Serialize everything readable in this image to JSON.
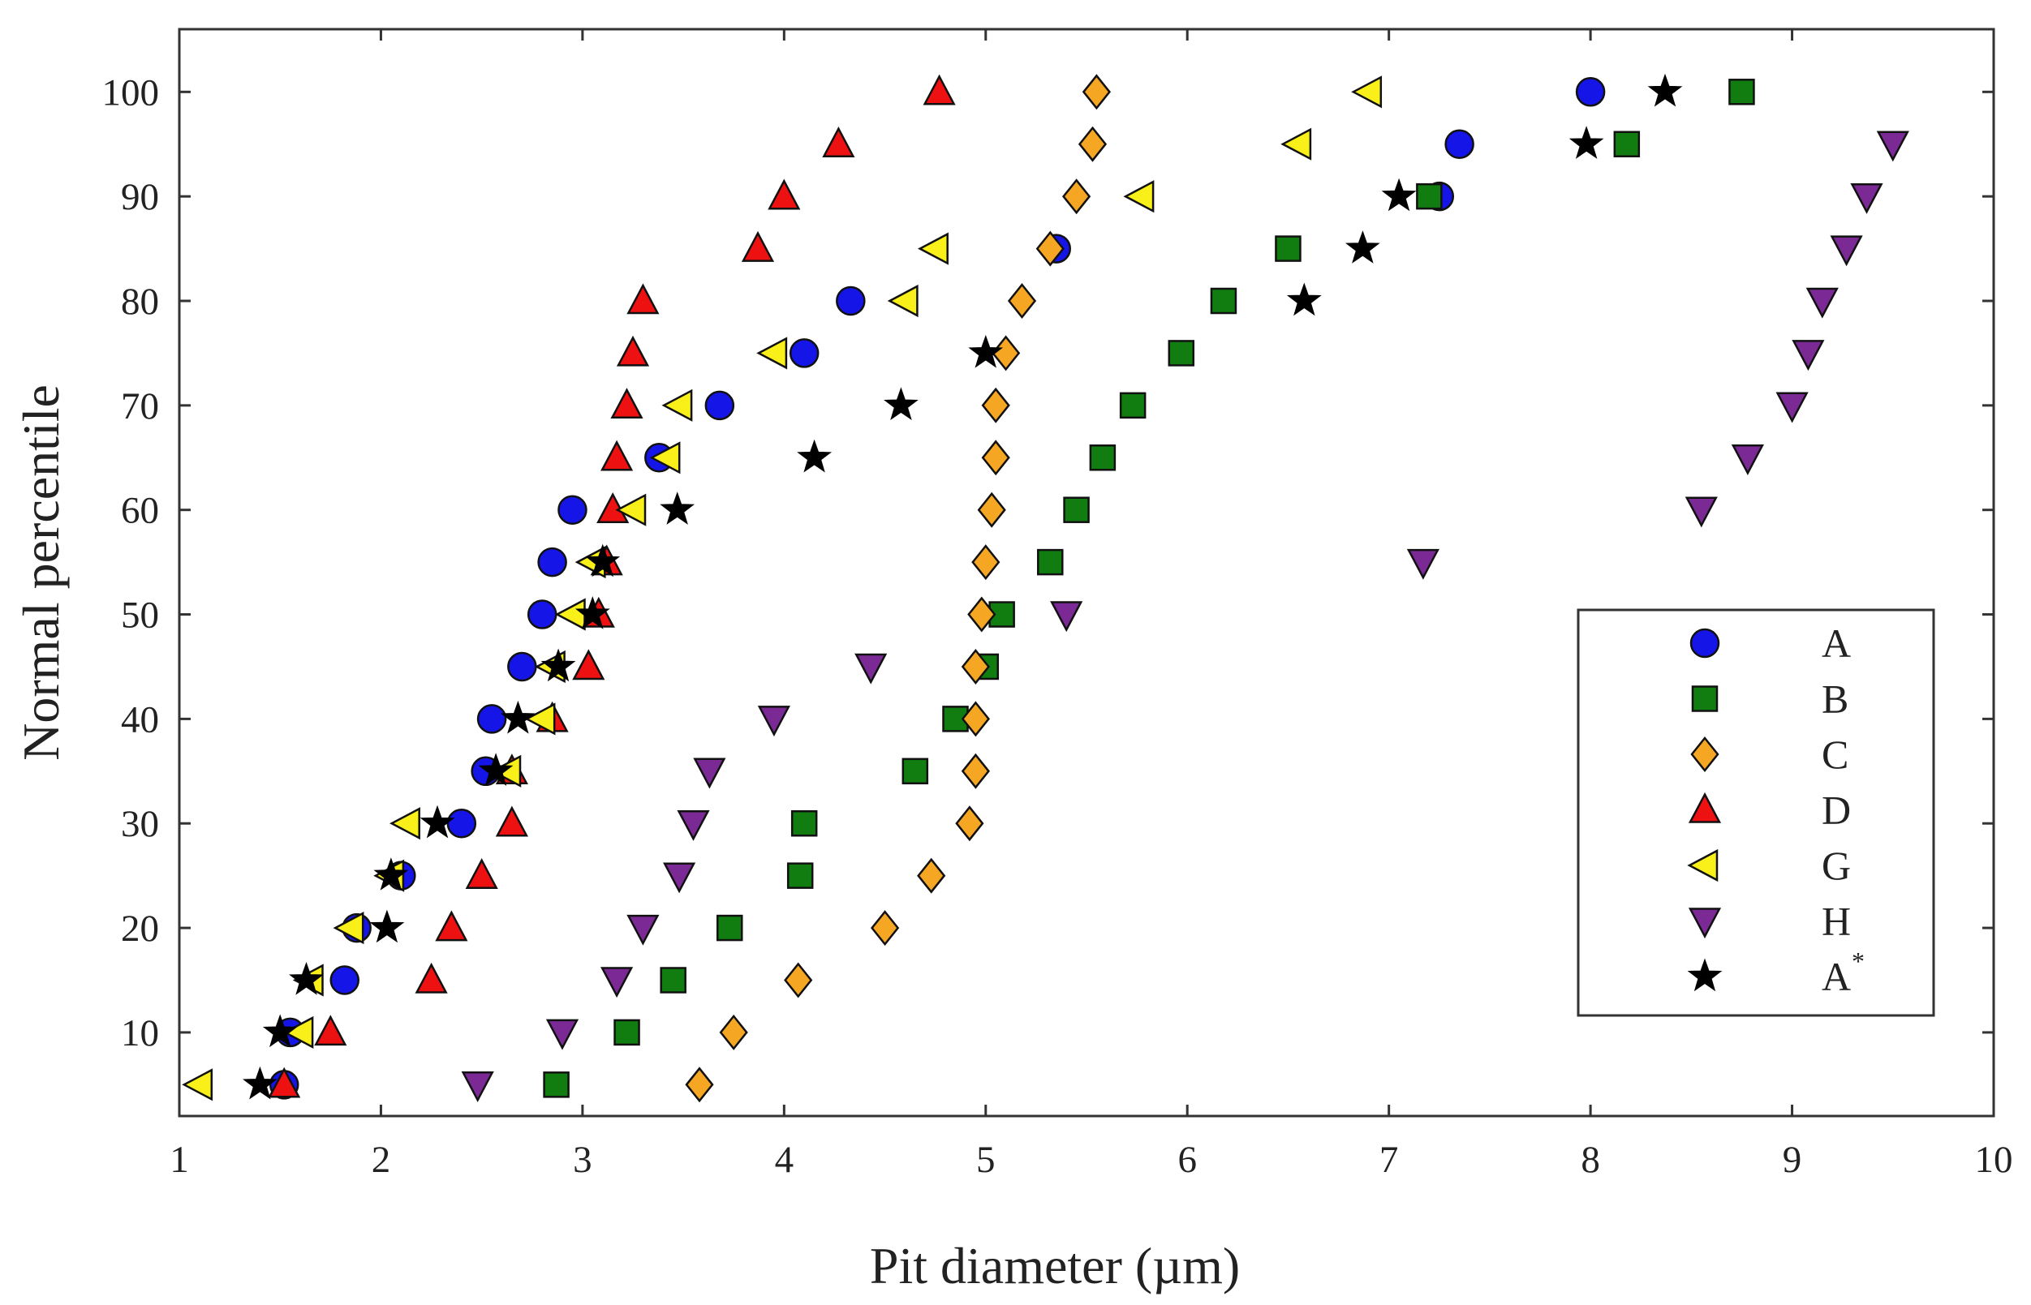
{
  "chart_data": {
    "type": "scatter",
    "xlabel": "Pit diameter (µm)",
    "ylabel": "Normal percentile",
    "xlim": [
      1,
      10
    ],
    "ylim": [
      2,
      106
    ],
    "xticks": [
      "1",
      "2",
      "3",
      "4",
      "5",
      "6",
      "7",
      "8",
      "9",
      "10"
    ],
    "yticks": [
      "10",
      "20",
      "30",
      "40",
      "50",
      "60",
      "70",
      "80",
      "90",
      "100"
    ],
    "grid": false,
    "legend_position": "lower-right",
    "series": [
      {
        "name": "A",
        "label": "A",
        "marker": "circle",
        "color": "#1515e8",
        "points": [
          [
            1.52,
            5
          ],
          [
            1.55,
            10
          ],
          [
            1.82,
            15
          ],
          [
            1.88,
            20
          ],
          [
            2.1,
            25
          ],
          [
            2.4,
            30
          ],
          [
            2.52,
            35
          ],
          [
            2.55,
            40
          ],
          [
            2.7,
            45
          ],
          [
            2.8,
            50
          ],
          [
            2.85,
            55
          ],
          [
            2.95,
            60
          ],
          [
            3.38,
            65
          ],
          [
            3.68,
            70
          ],
          [
            4.1,
            75
          ],
          [
            4.33,
            80
          ],
          [
            5.35,
            85
          ],
          [
            7.25,
            90
          ],
          [
            7.35,
            95
          ],
          [
            8.0,
            100
          ]
        ]
      },
      {
        "name": "B",
        "label": "B",
        "marker": "square",
        "color": "#117d11",
        "points": [
          [
            2.87,
            5
          ],
          [
            3.22,
            10
          ],
          [
            3.45,
            15
          ],
          [
            3.73,
            20
          ],
          [
            4.08,
            25
          ],
          [
            4.1,
            30
          ],
          [
            4.65,
            35
          ],
          [
            4.85,
            40
          ],
          [
            5.0,
            45
          ],
          [
            5.08,
            50
          ],
          [
            5.32,
            55
          ],
          [
            5.45,
            60
          ],
          [
            5.58,
            65
          ],
          [
            5.73,
            70
          ],
          [
            5.97,
            75
          ],
          [
            6.18,
            80
          ],
          [
            6.5,
            85
          ],
          [
            7.2,
            90
          ],
          [
            8.18,
            95
          ],
          [
            8.75,
            100
          ]
        ]
      },
      {
        "name": "C",
        "label": "C",
        "marker": "diamond",
        "color": "#f5a623",
        "points": [
          [
            3.58,
            5
          ],
          [
            3.75,
            10
          ],
          [
            4.07,
            15
          ],
          [
            4.5,
            20
          ],
          [
            4.73,
            25
          ],
          [
            4.92,
            30
          ],
          [
            4.95,
            35
          ],
          [
            4.95,
            40
          ],
          [
            4.95,
            45
          ],
          [
            4.98,
            50
          ],
          [
            5.0,
            55
          ],
          [
            5.03,
            60
          ],
          [
            5.05,
            65
          ],
          [
            5.05,
            70
          ],
          [
            5.1,
            75
          ],
          [
            5.18,
            80
          ],
          [
            5.32,
            85
          ],
          [
            5.45,
            90
          ],
          [
            5.53,
            95
          ],
          [
            5.55,
            100
          ]
        ]
      },
      {
        "name": "D",
        "label": "D",
        "marker": "triangle-up",
        "color": "#ee1111",
        "points": [
          [
            1.52,
            5
          ],
          [
            1.75,
            10
          ],
          [
            2.25,
            15
          ],
          [
            2.35,
            20
          ],
          [
            2.5,
            25
          ],
          [
            2.65,
            30
          ],
          [
            2.65,
            35
          ],
          [
            2.85,
            40
          ],
          [
            3.03,
            45
          ],
          [
            3.08,
            50
          ],
          [
            3.12,
            55
          ],
          [
            3.15,
            60
          ],
          [
            3.17,
            65
          ],
          [
            3.22,
            70
          ],
          [
            3.25,
            75
          ],
          [
            3.3,
            80
          ],
          [
            3.87,
            85
          ],
          [
            4.0,
            90
          ],
          [
            4.27,
            95
          ],
          [
            4.77,
            100
          ]
        ]
      },
      {
        "name": "G",
        "label": "G",
        "marker": "triangle-left",
        "color": "#f8f018",
        "points": [
          [
            1.1,
            5
          ],
          [
            1.6,
            10
          ],
          [
            1.65,
            15
          ],
          [
            1.85,
            20
          ],
          [
            2.05,
            25
          ],
          [
            2.13,
            30
          ],
          [
            2.63,
            35
          ],
          [
            2.8,
            40
          ],
          [
            2.85,
            45
          ],
          [
            2.95,
            50
          ],
          [
            3.05,
            55
          ],
          [
            3.25,
            60
          ],
          [
            3.42,
            65
          ],
          [
            3.48,
            70
          ],
          [
            3.95,
            75
          ],
          [
            4.6,
            80
          ],
          [
            4.75,
            85
          ],
          [
            5.77,
            90
          ],
          [
            6.55,
            95
          ],
          [
            6.9,
            100
          ]
        ]
      },
      {
        "name": "H",
        "label": "H",
        "marker": "triangle-down",
        "color": "#7b2a95",
        "points": [
          [
            2.48,
            5
          ],
          [
            2.9,
            10
          ],
          [
            3.17,
            15
          ],
          [
            3.3,
            20
          ],
          [
            3.48,
            25
          ],
          [
            3.55,
            30
          ],
          [
            3.63,
            35
          ],
          [
            3.95,
            40
          ],
          [
            4.43,
            45
          ],
          [
            5.4,
            50
          ],
          [
            7.17,
            55
          ],
          [
            8.55,
            60
          ],
          [
            8.78,
            65
          ],
          [
            9.0,
            70
          ],
          [
            9.08,
            75
          ],
          [
            9.15,
            80
          ],
          [
            9.27,
            85
          ],
          [
            9.37,
            90
          ],
          [
            9.5,
            95
          ]
        ]
      },
      {
        "name": "A*",
        "label": "A",
        "label_sup": "*",
        "marker": "star",
        "color": "#000000",
        "points": [
          [
            1.4,
            5
          ],
          [
            1.5,
            10
          ],
          [
            1.63,
            15
          ],
          [
            2.03,
            20
          ],
          [
            2.05,
            25
          ],
          [
            2.28,
            30
          ],
          [
            2.57,
            35
          ],
          [
            2.68,
            40
          ],
          [
            2.88,
            45
          ],
          [
            3.05,
            50
          ],
          [
            3.1,
            55
          ],
          [
            3.47,
            60
          ],
          [
            4.15,
            65
          ],
          [
            4.58,
            70
          ],
          [
            5.0,
            75
          ],
          [
            6.58,
            80
          ],
          [
            6.87,
            85
          ],
          [
            7.05,
            90
          ],
          [
            7.98,
            95
          ],
          [
            8.37,
            100
          ]
        ]
      }
    ]
  }
}
